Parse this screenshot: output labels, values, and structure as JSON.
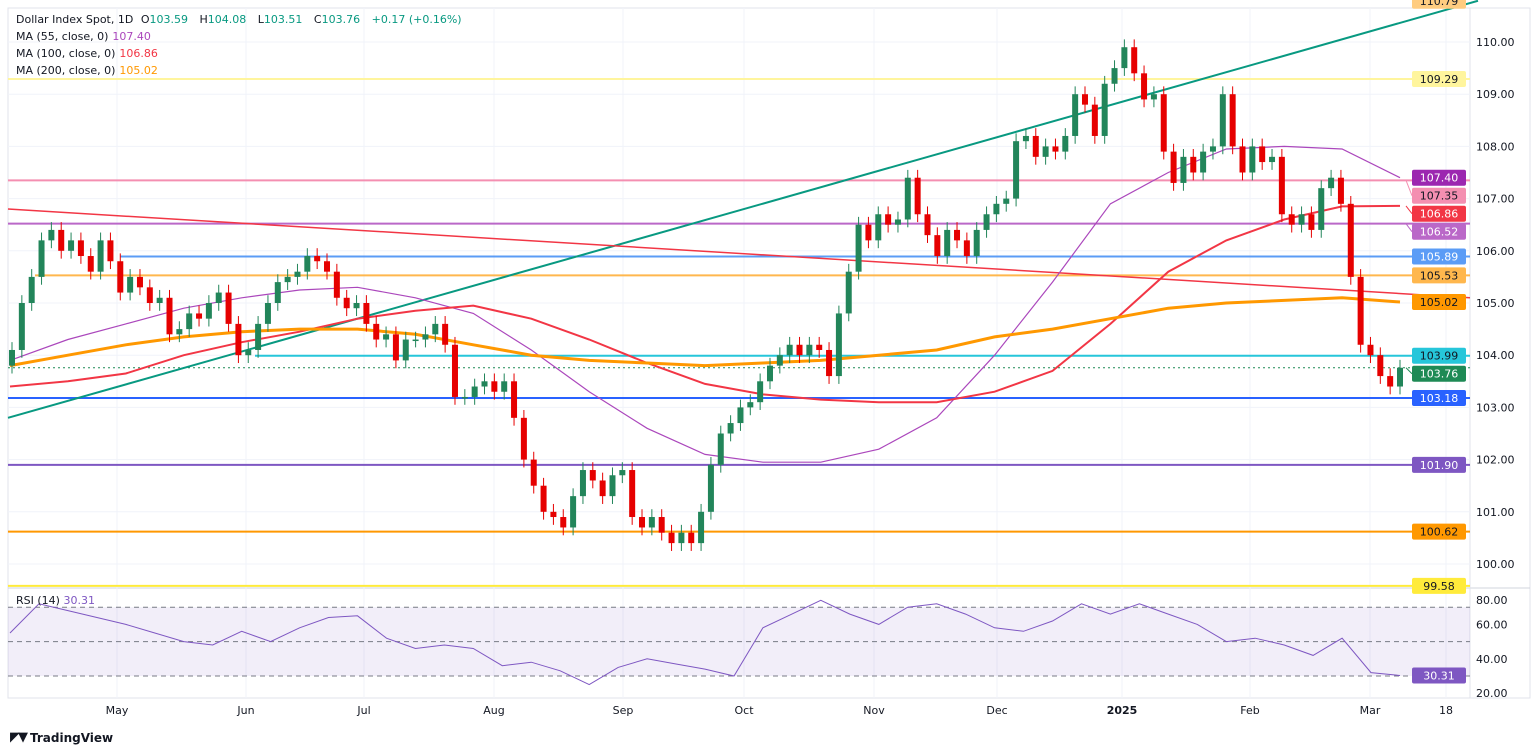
{
  "header": {
    "symbol": "Dollar Index Spot, 1D",
    "open_label": "O",
    "open": "103.59",
    "high_label": "H",
    "high": "104.08",
    "low_label": "L",
    "low": "103.51",
    "close_label": "C",
    "close": "103.76",
    "change": "+0.17 (+0.16%)"
  },
  "indicators": [
    {
      "label": "MA (55, close, 0)",
      "value": "107.40",
      "color": "#ab47bc"
    },
    {
      "label": "MA (100, close, 0)",
      "value": "106.86",
      "color": "#f23645"
    },
    {
      "label": "MA (200, close, 0)",
      "value": "105.02",
      "color": "#ff9800"
    }
  ],
  "rsi_legend": {
    "label": "RSI (14)",
    "value": "30.31",
    "color": "#7e57c2"
  },
  "logo": "TradingView",
  "colors": {
    "up": "#22855a",
    "down": "#e60000",
    "grid": "#f0f3fa"
  },
  "chart_data": [
    {
      "type": "candlestick",
      "title": "Dollar Index Spot, 1D",
      "x_tick_labels": [
        "May",
        "Jun",
        "Jul",
        "Aug",
        "Sep",
        "Oct",
        "Nov",
        "Dec",
        "2025",
        "Feb",
        "Mar",
        "18"
      ],
      "y_tick_labels": [
        "110.00",
        "109.00",
        "108.00",
        "107.00",
        "106.00",
        "105.00",
        "104.00",
        "103.00",
        "102.00",
        "101.00",
        "100.00"
      ],
      "ylim": [
        99.4,
        110.6
      ],
      "grid": true,
      "first_open": 103.8,
      "close": [
        104.1,
        105.0,
        105.5,
        106.2,
        106.4,
        106.0,
        106.2,
        105.9,
        105.6,
        106.2,
        105.8,
        105.2,
        105.5,
        105.3,
        105.0,
        105.1,
        104.4,
        104.5,
        104.8,
        104.7,
        105.0,
        105.2,
        104.6,
        104.0,
        104.1,
        104.6,
        105.0,
        105.4,
        105.5,
        105.6,
        105.9,
        105.8,
        105.6,
        105.1,
        104.9,
        105.0,
        104.6,
        104.3,
        104.4,
        103.9,
        104.3,
        104.3,
        104.4,
        104.6,
        104.2,
        103.2,
        103.2,
        103.4,
        103.5,
        103.3,
        103.5,
        102.8,
        102.0,
        101.5,
        101.0,
        100.9,
        100.7,
        101.3,
        101.8,
        101.6,
        101.3,
        101.7,
        101.8,
        100.9,
        100.7,
        100.9,
        100.6,
        100.4,
        100.6,
        100.4,
        101.0,
        101.9,
        102.5,
        102.7,
        103.0,
        103.1,
        103.5,
        103.8,
        104.0,
        104.2,
        104.0,
        104.2,
        104.1,
        103.6,
        104.8,
        105.6,
        106.5,
        106.2,
        106.7,
        106.5,
        106.6,
        107.4,
        106.7,
        106.3,
        105.9,
        106.4,
        106.2,
        105.9,
        106.4,
        106.7,
        106.9,
        107.0,
        108.1,
        108.2,
        107.8,
        108.0,
        107.9,
        108.2,
        109.0,
        108.8,
        108.2,
        109.2,
        109.5,
        109.9,
        109.4,
        108.9,
        109.0,
        107.9,
        107.3,
        107.8,
        107.5,
        107.9,
        108.0,
        109.0,
        108.0,
        107.5,
        108.0,
        107.7,
        107.8,
        106.7,
        106.5,
        106.7,
        106.4,
        107.2,
        107.4,
        106.9,
        105.5,
        104.2,
        104.0,
        103.6,
        103.4,
        103.76
      ],
      "series": [
        {
          "name": "MA (55, close, 0)",
          "color": "#ab47bc",
          "values": [
            103.9,
            104.3,
            104.6,
            104.9,
            105.1,
            105.25,
            105.3,
            105.1,
            104.8,
            104.1,
            103.3,
            102.6,
            102.1,
            101.95,
            101.95,
            102.2,
            102.8,
            104.0,
            105.4,
            106.9,
            107.5,
            107.95,
            108.0,
            107.95,
            107.4
          ]
        },
        {
          "name": "MA (100, close, 0)",
          "color": "#f23645",
          "values": [
            103.4,
            103.5,
            103.65,
            104.0,
            104.25,
            104.45,
            104.7,
            104.85,
            104.95,
            104.7,
            104.3,
            103.85,
            103.45,
            103.25,
            103.15,
            103.1,
            103.1,
            103.3,
            103.7,
            104.6,
            105.6,
            106.2,
            106.6,
            106.85,
            106.86
          ]
        },
        {
          "name": "MA (200, close, 0)",
          "color": "#ff9800",
          "values": [
            103.8,
            104.0,
            104.2,
            104.35,
            104.45,
            104.5,
            104.5,
            104.4,
            104.2,
            104.0,
            103.9,
            103.85,
            103.8,
            103.85,
            103.9,
            104.0,
            104.1,
            104.35,
            104.5,
            104.7,
            104.9,
            105.0,
            105.05,
            105.1,
            105.02
          ]
        }
      ],
      "levels": [
        {
          "value": 110.79,
          "label": "110.79",
          "color": "#ffcc80",
          "line": "none"
        },
        {
          "value": 109.29,
          "label": "109.29",
          "color": "#fff59d",
          "line": "solid"
        },
        {
          "value": 107.4,
          "label": "107.40",
          "color": "#9c27b0",
          "line": "none"
        },
        {
          "value": 107.35,
          "label": "107.35",
          "color": "#f48fb1",
          "line": "solid"
        },
        {
          "value": 106.86,
          "label": "106.86",
          "color": "#f23645",
          "line": "none"
        },
        {
          "value": 106.52,
          "label": "106.52",
          "color": "#ba68c8",
          "line": "solid"
        },
        {
          "value": 105.89,
          "label": "105.89",
          "color": "#5b9cf6",
          "line": "solid"
        },
        {
          "value": 105.53,
          "label": "105.53",
          "color": "#ffb74d",
          "line": "solid"
        },
        {
          "value": 105.02,
          "label": "105.02",
          "color": "#ff9800",
          "line": "none"
        },
        {
          "value": 103.99,
          "label": "103.99",
          "color": "#26c6da",
          "line": "solid"
        },
        {
          "value": 103.76,
          "label": "103.76",
          "color": "#1e8a55",
          "line": "dotted"
        },
        {
          "value": 103.18,
          "label": "103.18",
          "color": "#2962ff",
          "line": "solid"
        },
        {
          "value": 101.9,
          "label": "101.90",
          "color": "#7e57c2",
          "line": "solid"
        },
        {
          "value": 100.62,
          "label": "100.62",
          "color": "#ff9800",
          "line": "solid"
        },
        {
          "value": 99.58,
          "label": "99.58",
          "color": "#ffeb3b",
          "line": "solid"
        }
      ],
      "trendlines": [
        {
          "name": "uptrend",
          "color": "#089981",
          "from": 102.8,
          "to": 110.79
        },
        {
          "name": "downtrend",
          "color": "#f23645",
          "from": 106.8,
          "to": 105.1
        }
      ]
    },
    {
      "type": "line",
      "title": "RSI (14)",
      "ylim": [
        17,
        82
      ],
      "y_tick_labels": [
        "80.00",
        "60.00",
        "40.00",
        "20.00"
      ],
      "bands": [
        70,
        50,
        30
      ],
      "last_label": "30.31",
      "color": "#7e57c2",
      "values": [
        55,
        72,
        68,
        64,
        60,
        55,
        50,
        48,
        56,
        50,
        58,
        64,
        65,
        52,
        46,
        48,
        46,
        36,
        38,
        33,
        25,
        35,
        40,
        37,
        34,
        30,
        58,
        66,
        74,
        66,
        60,
        70,
        72,
        66,
        58,
        56,
        62,
        72,
        66,
        72,
        66,
        60,
        50,
        52,
        48,
        42,
        52,
        32,
        30.31
      ]
    }
  ]
}
